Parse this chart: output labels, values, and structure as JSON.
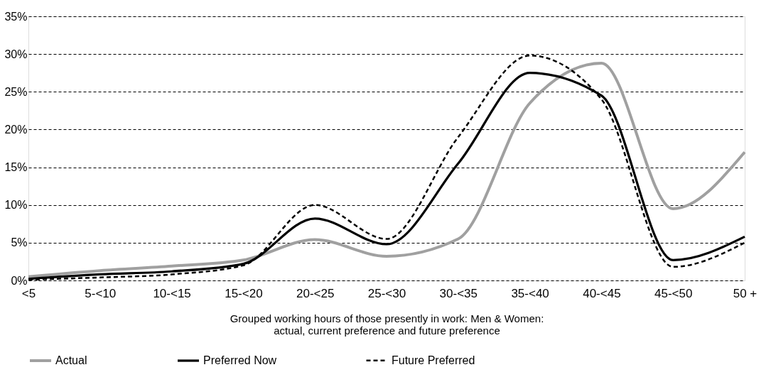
{
  "chart_data": {
    "type": "line",
    "xlabel": "Grouped working hours of those presently in work: Men & Women:\nactual, current preference and future preference",
    "categories": [
      "<5",
      "5-<10",
      "10-<15",
      "15-<20",
      "20-<25",
      "25-<30",
      "30-<35",
      "35-<40",
      "40-<45",
      "45-<50",
      "50 +"
    ],
    "series": [
      {
        "name": "Actual",
        "color": "#a0a0a0",
        "line_style": "solid",
        "values": [
          0.5,
          1.3,
          1.9,
          2.7,
          5.4,
          3.2,
          5.5,
          23.5,
          28.8,
          9.5,
          17
        ]
      },
      {
        "name": "Preferred Now",
        "color": "#000000",
        "line_style": "solid",
        "values": [
          0.2,
          0.8,
          1.2,
          2.2,
          8.2,
          4.8,
          15.5,
          27.5,
          24.5,
          2.7,
          5.8
        ]
      },
      {
        "name": "Future Preferred",
        "color": "#000000",
        "line_style": "dashed",
        "values": [
          0.1,
          0.4,
          0.8,
          2.0,
          10,
          5.5,
          19,
          29.8,
          24,
          1.8,
          5
        ]
      }
    ],
    "ylim": [
      0,
      35
    ],
    "yticks": [
      {
        "value": 0,
        "label": "0%"
      },
      {
        "value": 5,
        "label": "5%"
      },
      {
        "value": 10,
        "label": "10%"
      },
      {
        "value": 15,
        "label": "15%"
      },
      {
        "value": 20,
        "label": "20%"
      },
      {
        "value": 25,
        "label": "25%"
      },
      {
        "value": 30,
        "label": "30%"
      },
      {
        "value": 35,
        "label": "35%"
      }
    ],
    "grid": "y",
    "legend": "bottom"
  }
}
